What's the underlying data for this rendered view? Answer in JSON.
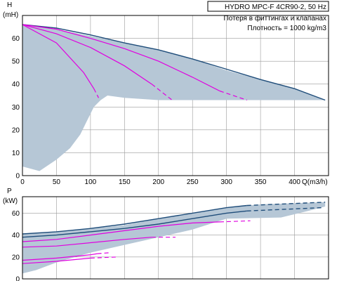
{
  "product": {
    "title": "HYDRO MPC-F 4CR90-2, 50 Hz",
    "note": "Потеря в фиттингах и клапанах",
    "density": "Плотность = 1000 kg/m3"
  },
  "colors": {
    "envelope": "#b6c7d6",
    "curve_dark": "#1f4d7a",
    "curve_magenta": "#e000e0",
    "grid": "#9a9a9a"
  },
  "chart_data": [
    {
      "type": "line",
      "name": "head",
      "ylabel": "H",
      "yunit": "(mH)",
      "xlabel": "Q(m3/h)",
      "xlim": [
        0,
        450
      ],
      "ylim": [
        0,
        70
      ],
      "xticks": [
        0,
        50,
        100,
        150,
        200,
        250,
        300,
        350,
        400
      ],
      "yticks": [
        0,
        10,
        20,
        30,
        40,
        50,
        60
      ],
      "grid": true,
      "envelope": [
        [
          0,
          66
        ],
        [
          50,
          64
        ],
        [
          100,
          61
        ],
        [
          150,
          58
        ],
        [
          200,
          55
        ],
        [
          250,
          51
        ],
        [
          300,
          46
        ],
        [
          350,
          42
        ],
        [
          400,
          38
        ],
        [
          445,
          33
        ],
        [
          420,
          33
        ],
        [
          370,
          33
        ],
        [
          300,
          33
        ],
        [
          250,
          33
        ],
        [
          200,
          33
        ],
        [
          150,
          34
        ],
        [
          125,
          35
        ],
        [
          115,
          33
        ],
        [
          105,
          30
        ],
        [
          95,
          24
        ],
        [
          85,
          18
        ],
        [
          70,
          12
        ],
        [
          50,
          7
        ],
        [
          25,
          2
        ],
        [
          0,
          4
        ]
      ],
      "series": [
        {
          "style": "dark",
          "x": [
            0,
            50,
            100,
            150,
            200,
            250,
            300,
            350,
            400,
            445
          ],
          "y": [
            66,
            64.5,
            61.5,
            58,
            55,
            51,
            46.5,
            42,
            38,
            33
          ]
        },
        {
          "style": "magenta",
          "x": [
            0,
            50,
            100,
            150,
            200,
            250,
            290
          ],
          "y": [
            66,
            64,
            60,
            55.5,
            50,
            43,
            37
          ]
        },
        {
          "style": "magenta-dashed",
          "x": [
            290,
            330
          ],
          "y": [
            37,
            33
          ]
        },
        {
          "style": "magenta",
          "x": [
            0,
            50,
            100,
            150,
            190
          ],
          "y": [
            66,
            62,
            56,
            48,
            40
          ]
        },
        {
          "style": "magenta-dashed",
          "x": [
            190,
            220
          ],
          "y": [
            40,
            33
          ]
        },
        {
          "style": "magenta",
          "x": [
            0,
            50,
            90,
            105
          ],
          "y": [
            66,
            58,
            45,
            38
          ]
        },
        {
          "style": "magenta-dashed",
          "x": [
            105,
            112
          ],
          "y": [
            38,
            34
          ]
        }
      ]
    },
    {
      "type": "line",
      "name": "power",
      "ylabel": "P",
      "yunit": "(kW)",
      "xlim": [
        0,
        450
      ],
      "ylim": [
        0,
        75
      ],
      "yticks": [
        0,
        20,
        40,
        60
      ],
      "grid": true,
      "envelope": [
        [
          0,
          41
        ],
        [
          50,
          43
        ],
        [
          100,
          46
        ],
        [
          150,
          49
        ],
        [
          200,
          55
        ],
        [
          250,
          60
        ],
        [
          300,
          65
        ],
        [
          350,
          68
        ],
        [
          445,
          70
        ],
        [
          445,
          66
        ],
        [
          420,
          62
        ],
        [
          380,
          56
        ],
        [
          300,
          55
        ],
        [
          250,
          45
        ],
        [
          200,
          38
        ],
        [
          150,
          31
        ],
        [
          100,
          24
        ],
        [
          50,
          15
        ],
        [
          20,
          8
        ],
        [
          0,
          5
        ]
      ],
      "series": [
        {
          "style": "dark",
          "x": [
            0,
            50,
            100,
            150,
            200,
            250,
            300,
            330
          ],
          "y": [
            41,
            43,
            46,
            50,
            55,
            60,
            65,
            67
          ]
        },
        {
          "style": "dark-dashed",
          "x": [
            330,
            445
          ],
          "y": [
            67,
            70
          ]
        },
        {
          "style": "dark",
          "x": [
            0,
            50,
            100,
            150,
            200,
            250,
            300,
            330
          ],
          "y": [
            38,
            40,
            43,
            46,
            50,
            55,
            60,
            62
          ]
        },
        {
          "style": "dark-dashed",
          "x": [
            330,
            440
          ],
          "y": [
            62,
            65
          ]
        },
        {
          "style": "magenta",
          "x": [
            0,
            50,
            100,
            150,
            200,
            250,
            290
          ],
          "y": [
            34,
            36,
            40,
            44,
            48,
            51,
            52
          ]
        },
        {
          "style": "magenta-dashed",
          "x": [
            290,
            335
          ],
          "y": [
            52,
            53
          ]
        },
        {
          "style": "magenta",
          "x": [
            0,
            50,
            100,
            150,
            190
          ],
          "y": [
            29,
            30,
            33,
            36,
            38
          ]
        },
        {
          "style": "magenta-dashed",
          "x": [
            190,
            225
          ],
          "y": [
            38,
            38
          ]
        },
        {
          "style": "magenta",
          "x": [
            0,
            50,
            100,
            110
          ],
          "y": [
            17,
            19,
            22,
            23
          ]
        },
        {
          "style": "magenta-dashed",
          "x": [
            110,
            130
          ],
          "y": [
            23,
            24
          ]
        },
        {
          "style": "magenta",
          "x": [
            0,
            50,
            100
          ],
          "y": [
            14,
            16,
            19
          ]
        },
        {
          "style": "magenta-dashed",
          "x": [
            100,
            140
          ],
          "y": [
            19,
            20
          ]
        }
      ]
    }
  ]
}
